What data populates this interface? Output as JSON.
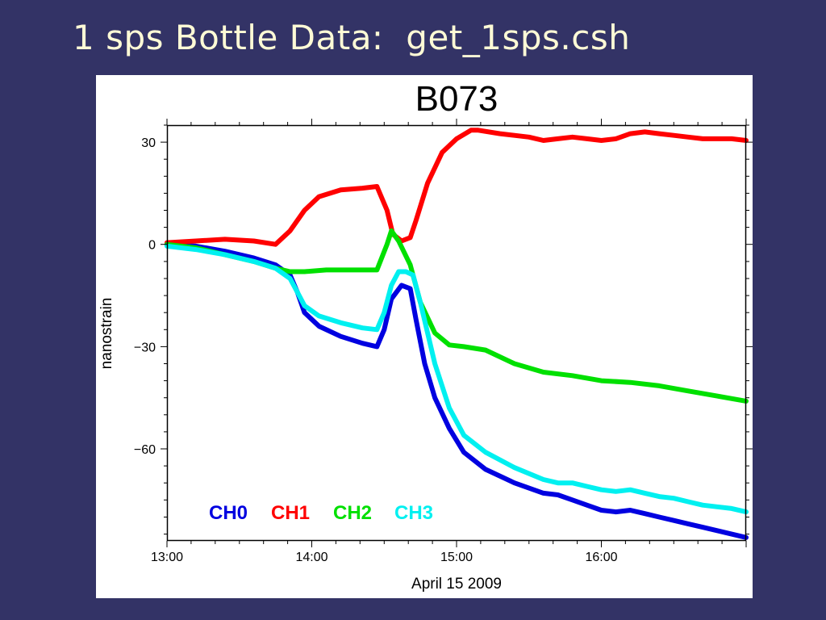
{
  "slide": {
    "title": "1 sps Bottle Data:  get_1sps.csh"
  },
  "chart_data": {
    "type": "line",
    "title": "B073",
    "xlabel": "April 15 2009",
    "ylabel": "nanostrain",
    "x_unit": "hours",
    "xlim": [
      13.0,
      17.0
    ],
    "ylim": [
      -87,
      35
    ],
    "x_ticks": [
      13,
      14,
      15,
      16
    ],
    "x_tick_labels": [
      "13:00",
      "14:00",
      "15:00",
      "16:00"
    ],
    "y_ticks": [
      30,
      0,
      -30,
      -60
    ],
    "y_tick_labels": [
      "30",
      "0",
      "−30",
      "−60"
    ],
    "grid": false,
    "legend_position": "bottom-left",
    "legend": [
      "CH0",
      "CH1",
      "CH2",
      "CH3"
    ],
    "series": [
      {
        "name": "CH0",
        "color": "#0000e0",
        "x": [
          13.0,
          13.2,
          13.4,
          13.6,
          13.75,
          13.85,
          13.9,
          13.95,
          14.05,
          14.2,
          14.35,
          14.45,
          14.5,
          14.55,
          14.62,
          14.68,
          14.72,
          14.78,
          14.85,
          14.95,
          15.05,
          15.2,
          15.4,
          15.6,
          15.7,
          15.8,
          15.9,
          16.0,
          16.1,
          16.2,
          16.3,
          16.4,
          16.5,
          16.6,
          16.7,
          16.8,
          16.9,
          17.0
        ],
        "y": [
          0,
          -0.5,
          -2,
          -4,
          -6,
          -9,
          -14,
          -20,
          -24,
          -27,
          -29,
          -30,
          -25,
          -16,
          -12,
          -13,
          -22,
          -35,
          -45,
          -54,
          -61,
          -66,
          -70,
          -73,
          -73.5,
          -75,
          -76.5,
          -78,
          -78.5,
          -78,
          -79,
          -80,
          -81,
          -82,
          -83,
          -84,
          -85,
          -86
        ]
      },
      {
        "name": "CH1",
        "color": "#ff0000",
        "x": [
          13.0,
          13.2,
          13.4,
          13.6,
          13.75,
          13.85,
          13.95,
          14.05,
          14.2,
          14.35,
          14.45,
          14.52,
          14.56,
          14.62,
          14.68,
          14.72,
          14.8,
          14.9,
          15.0,
          15.1,
          15.15,
          15.3,
          15.5,
          15.6,
          15.7,
          15.8,
          15.9,
          16.0,
          16.1,
          16.2,
          16.3,
          16.4,
          16.5,
          16.6,
          16.7,
          16.8,
          16.9,
          17.0
        ],
        "y": [
          0.5,
          1,
          1.5,
          1,
          0,
          4,
          10,
          14,
          16,
          16.5,
          17,
          10,
          3,
          1,
          2,
          7,
          18,
          27,
          31,
          33.5,
          33.5,
          32.5,
          31.5,
          30.5,
          31,
          31.5,
          31,
          30.5,
          31,
          32.5,
          33,
          32.5,
          32,
          31.5,
          31,
          31,
          31,
          30.5
        ]
      },
      {
        "name": "CH2",
        "color": "#00e000",
        "x": [
          13.0,
          13.2,
          13.4,
          13.6,
          13.75,
          13.85,
          13.95,
          14.1,
          14.3,
          14.45,
          14.52,
          14.55,
          14.6,
          14.68,
          14.75,
          14.85,
          14.95,
          15.05,
          15.2,
          15.4,
          15.6,
          15.8,
          16.0,
          16.2,
          16.4,
          16.6,
          16.8,
          17.0
        ],
        "y": [
          0,
          -1,
          -3,
          -5,
          -7,
          -8,
          -8,
          -7.5,
          -7.5,
          -7.5,
          0,
          4,
          1,
          -6,
          -17,
          -26,
          -29.5,
          -30,
          -31,
          -35,
          -37.5,
          -38.5,
          -40,
          -40.5,
          -41.5,
          -43,
          -44.5,
          -46
        ]
      },
      {
        "name": "CH3",
        "color": "#00f0f0",
        "x": [
          13.0,
          13.2,
          13.4,
          13.6,
          13.75,
          13.85,
          13.9,
          13.95,
          14.05,
          14.2,
          14.35,
          14.45,
          14.5,
          14.55,
          14.6,
          14.65,
          14.7,
          14.75,
          14.85,
          14.95,
          15.05,
          15.2,
          15.4,
          15.6,
          15.7,
          15.8,
          15.9,
          16.0,
          16.1,
          16.2,
          16.3,
          16.4,
          16.5,
          16.6,
          16.7,
          16.8,
          16.9,
          17.0
        ],
        "y": [
          -0.5,
          -1.5,
          -3,
          -5,
          -7,
          -10,
          -14,
          -18,
          -21,
          -23,
          -24.5,
          -25,
          -20,
          -12,
          -8,
          -8,
          -9,
          -17,
          -35,
          -48,
          -56,
          -61,
          -65.5,
          -69,
          -70,
          -70,
          -71,
          -72,
          -72.5,
          -72,
          -73,
          -74,
          -74.5,
          -75.5,
          -76.5,
          -77,
          -77.5,
          -78.5
        ]
      }
    ]
  }
}
